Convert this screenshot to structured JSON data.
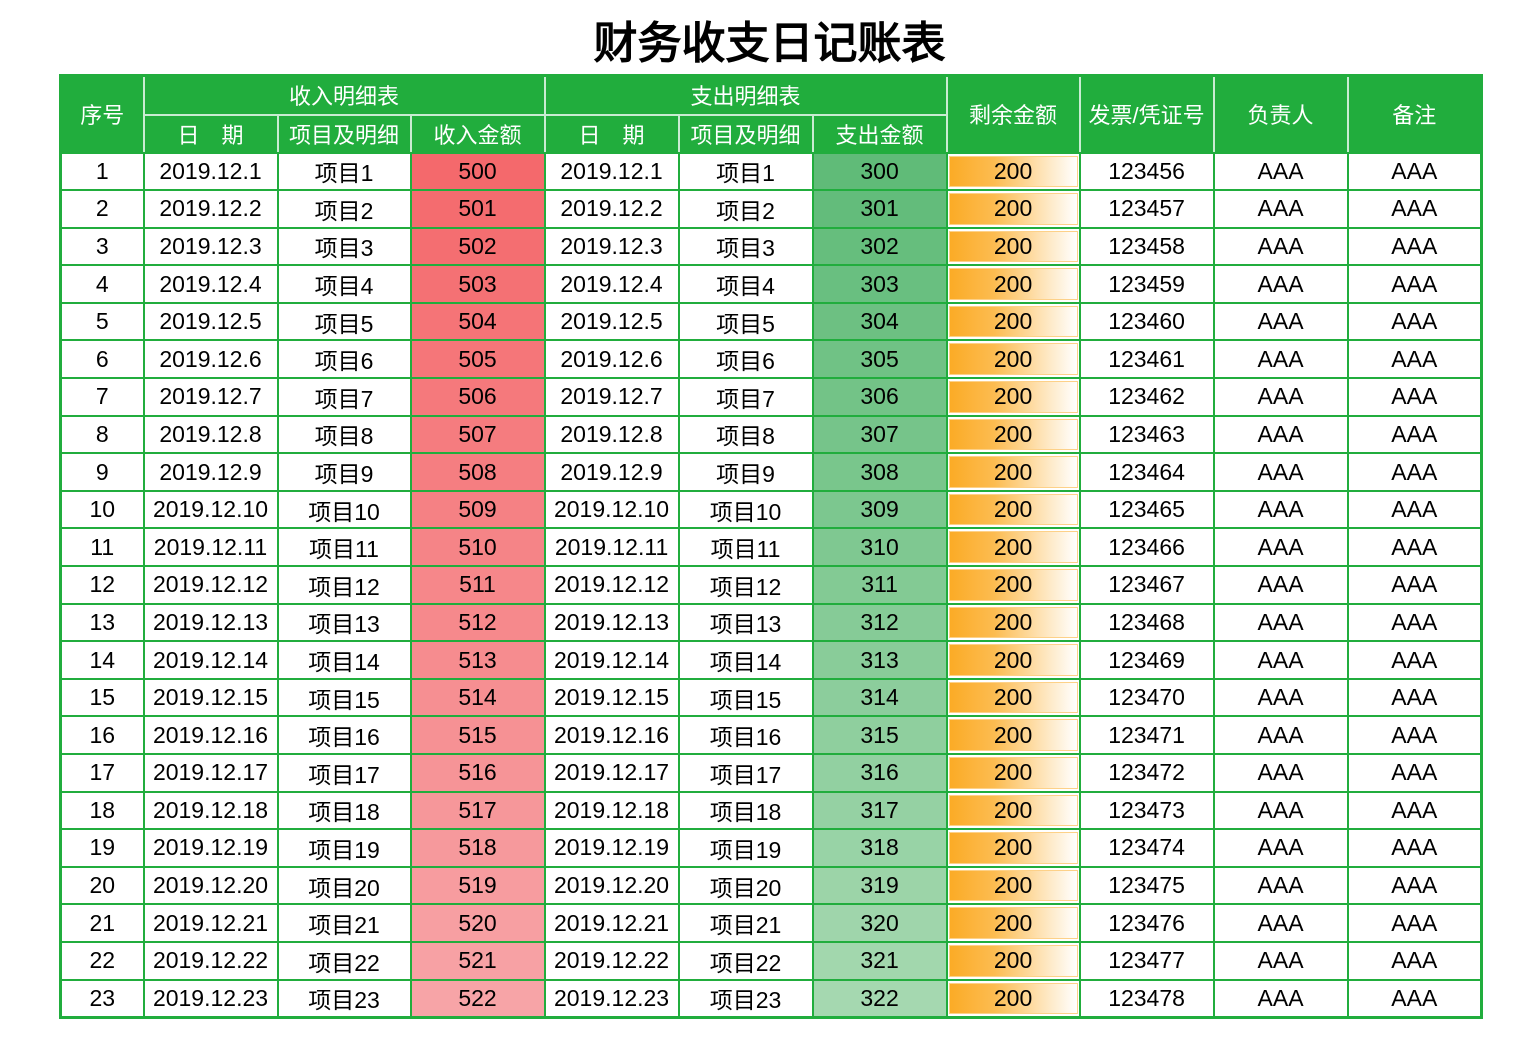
{
  "title": "财务收支日记账表",
  "colors": {
    "header_bg": "#21ad3d",
    "grid": "#21ad3d",
    "income_scale": [
      "#f4696c",
      "#f7a4a7"
    ],
    "expense_scale": [
      "#60bb78",
      "#a5d8b0"
    ],
    "balance_bar": "#fbab26"
  },
  "headers": {
    "seq": "序号",
    "income_group": "收入明细表",
    "expense_group": "支出明细表",
    "income_date": "日　期",
    "income_item": "项目及明细",
    "income_amount": "收入金额",
    "expense_date": "日　期",
    "expense_item": "项目及明细",
    "expense_amount": "支出金额",
    "balance": "剩余金额",
    "voucher": "发票/凭证号",
    "owner": "负责人",
    "remark": "备注"
  },
  "rows": [
    {
      "seq": "1",
      "income_date": "2019.12.1",
      "income_item": "项目1",
      "income_amount": 500,
      "expense_date": "2019.12.1",
      "expense_item": "项目1",
      "expense_amount": 300,
      "balance": 200,
      "voucher": "123456",
      "owner": "AAA",
      "remark": "AAA"
    },
    {
      "seq": "2",
      "income_date": "2019.12.2",
      "income_item": "项目2",
      "income_amount": 501,
      "expense_date": "2019.12.2",
      "expense_item": "项目2",
      "expense_amount": 301,
      "balance": 200,
      "voucher": "123457",
      "owner": "AAA",
      "remark": "AAA"
    },
    {
      "seq": "3",
      "income_date": "2019.12.3",
      "income_item": "项目3",
      "income_amount": 502,
      "expense_date": "2019.12.3",
      "expense_item": "项目3",
      "expense_amount": 302,
      "balance": 200,
      "voucher": "123458",
      "owner": "AAA",
      "remark": "AAA"
    },
    {
      "seq": "4",
      "income_date": "2019.12.4",
      "income_item": "项目4",
      "income_amount": 503,
      "expense_date": "2019.12.4",
      "expense_item": "项目4",
      "expense_amount": 303,
      "balance": 200,
      "voucher": "123459",
      "owner": "AAA",
      "remark": "AAA"
    },
    {
      "seq": "5",
      "income_date": "2019.12.5",
      "income_item": "项目5",
      "income_amount": 504,
      "expense_date": "2019.12.5",
      "expense_item": "项目5",
      "expense_amount": 304,
      "balance": 200,
      "voucher": "123460",
      "owner": "AAA",
      "remark": "AAA"
    },
    {
      "seq": "6",
      "income_date": "2019.12.6",
      "income_item": "项目6",
      "income_amount": 505,
      "expense_date": "2019.12.6",
      "expense_item": "项目6",
      "expense_amount": 305,
      "balance": 200,
      "voucher": "123461",
      "owner": "AAA",
      "remark": "AAA"
    },
    {
      "seq": "7",
      "income_date": "2019.12.7",
      "income_item": "项目7",
      "income_amount": 506,
      "expense_date": "2019.12.7",
      "expense_item": "项目7",
      "expense_amount": 306,
      "balance": 200,
      "voucher": "123462",
      "owner": "AAA",
      "remark": "AAA"
    },
    {
      "seq": "8",
      "income_date": "2019.12.8",
      "income_item": "项目8",
      "income_amount": 507,
      "expense_date": "2019.12.8",
      "expense_item": "项目8",
      "expense_amount": 307,
      "balance": 200,
      "voucher": "123463",
      "owner": "AAA",
      "remark": "AAA"
    },
    {
      "seq": "9",
      "income_date": "2019.12.9",
      "income_item": "项目9",
      "income_amount": 508,
      "expense_date": "2019.12.9",
      "expense_item": "项目9",
      "expense_amount": 308,
      "balance": 200,
      "voucher": "123464",
      "owner": "AAA",
      "remark": "AAA"
    },
    {
      "seq": "10",
      "income_date": "2019.12.10",
      "income_item": "项目10",
      "income_amount": 509,
      "expense_date": "2019.12.10",
      "expense_item": "项目10",
      "expense_amount": 309,
      "balance": 200,
      "voucher": "123465",
      "owner": "AAA",
      "remark": "AAA"
    },
    {
      "seq": "11",
      "income_date": "2019.12.11",
      "income_item": "项目11",
      "income_amount": 510,
      "expense_date": "2019.12.11",
      "expense_item": "项目11",
      "expense_amount": 310,
      "balance": 200,
      "voucher": "123466",
      "owner": "AAA",
      "remark": "AAA"
    },
    {
      "seq": "12",
      "income_date": "2019.12.12",
      "income_item": "项目12",
      "income_amount": 511,
      "expense_date": "2019.12.12",
      "expense_item": "项目12",
      "expense_amount": 311,
      "balance": 200,
      "voucher": "123467",
      "owner": "AAA",
      "remark": "AAA"
    },
    {
      "seq": "13",
      "income_date": "2019.12.13",
      "income_item": "项目13",
      "income_amount": 512,
      "expense_date": "2019.12.13",
      "expense_item": "项目13",
      "expense_amount": 312,
      "balance": 200,
      "voucher": "123468",
      "owner": "AAA",
      "remark": "AAA"
    },
    {
      "seq": "14",
      "income_date": "2019.12.14",
      "income_item": "项目14",
      "income_amount": 513,
      "expense_date": "2019.12.14",
      "expense_item": "项目14",
      "expense_amount": 313,
      "balance": 200,
      "voucher": "123469",
      "owner": "AAA",
      "remark": "AAA"
    },
    {
      "seq": "15",
      "income_date": "2019.12.15",
      "income_item": "项目15",
      "income_amount": 514,
      "expense_date": "2019.12.15",
      "expense_item": "项目15",
      "expense_amount": 314,
      "balance": 200,
      "voucher": "123470",
      "owner": "AAA",
      "remark": "AAA"
    },
    {
      "seq": "16",
      "income_date": "2019.12.16",
      "income_item": "项目16",
      "income_amount": 515,
      "expense_date": "2019.12.16",
      "expense_item": "项目16",
      "expense_amount": 315,
      "balance": 200,
      "voucher": "123471",
      "owner": "AAA",
      "remark": "AAA"
    },
    {
      "seq": "17",
      "income_date": "2019.12.17",
      "income_item": "项目17",
      "income_amount": 516,
      "expense_date": "2019.12.17",
      "expense_item": "项目17",
      "expense_amount": 316,
      "balance": 200,
      "voucher": "123472",
      "owner": "AAA",
      "remark": "AAA"
    },
    {
      "seq": "18",
      "income_date": "2019.12.18",
      "income_item": "项目18",
      "income_amount": 517,
      "expense_date": "2019.12.18",
      "expense_item": "项目18",
      "expense_amount": 317,
      "balance": 200,
      "voucher": "123473",
      "owner": "AAA",
      "remark": "AAA"
    },
    {
      "seq": "19",
      "income_date": "2019.12.19",
      "income_item": "项目19",
      "income_amount": 518,
      "expense_date": "2019.12.19",
      "expense_item": "项目19",
      "expense_amount": 318,
      "balance": 200,
      "voucher": "123474",
      "owner": "AAA",
      "remark": "AAA"
    },
    {
      "seq": "20",
      "income_date": "2019.12.20",
      "income_item": "项目20",
      "income_amount": 519,
      "expense_date": "2019.12.20",
      "expense_item": "项目20",
      "expense_amount": 319,
      "balance": 200,
      "voucher": "123475",
      "owner": "AAA",
      "remark": "AAA"
    },
    {
      "seq": "21",
      "income_date": "2019.12.21",
      "income_item": "项目21",
      "income_amount": 520,
      "expense_date": "2019.12.21",
      "expense_item": "项目21",
      "expense_amount": 320,
      "balance": 200,
      "voucher": "123476",
      "owner": "AAA",
      "remark": "AAA"
    },
    {
      "seq": "22",
      "income_date": "2019.12.22",
      "income_item": "项目22",
      "income_amount": 521,
      "expense_date": "2019.12.22",
      "expense_item": "项目22",
      "expense_amount": 321,
      "balance": 200,
      "voucher": "123477",
      "owner": "AAA",
      "remark": "AAA"
    },
    {
      "seq": "23",
      "income_date": "2019.12.23",
      "income_item": "项目23",
      "income_amount": 522,
      "expense_date": "2019.12.23",
      "expense_item": "项目23",
      "expense_amount": 322,
      "balance": 200,
      "voucher": "123478",
      "owner": "AAA",
      "remark": "AAA"
    }
  ]
}
